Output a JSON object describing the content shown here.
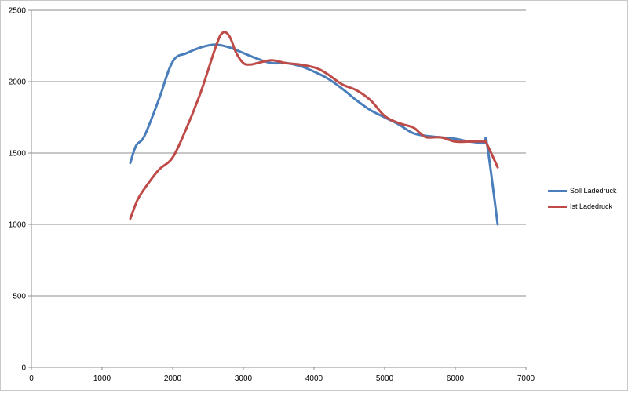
{
  "chart_data": {
    "type": "line",
    "title": "",
    "xlabel": "",
    "ylabel": "",
    "xlim": [
      0,
      7000
    ],
    "ylim": [
      0,
      2500
    ],
    "x_ticks": [
      0,
      1000,
      2000,
      3000,
      4000,
      5000,
      6000,
      7000
    ],
    "y_ticks": [
      0,
      500,
      1000,
      1500,
      2000,
      2500
    ],
    "x_tick_labels": [
      "0",
      "1000",
      "2000",
      "3000",
      "4000",
      "5000",
      "6000",
      "7000"
    ],
    "y_tick_labels": [
      "0",
      "500",
      "1000",
      "1500",
      "2000",
      "2500"
    ],
    "grid": "horizontal",
    "legend_position": "right",
    "series": [
      {
        "name": "Soll Ladedruck",
        "color": "#4a7ebb",
        "x": [
          1400,
          1480,
          1600,
          1800,
          2000,
          2200,
          2400,
          2600,
          2800,
          3000,
          3200,
          3400,
          3600,
          3800,
          4000,
          4200,
          4400,
          4600,
          4800,
          5000,
          5200,
          5400,
          5600,
          5800,
          6000,
          6200,
          6400,
          6450,
          6600
        ],
        "y": [
          1430,
          1550,
          1620,
          1870,
          2140,
          2200,
          2240,
          2260,
          2240,
          2200,
          2160,
          2130,
          2130,
          2110,
          2070,
          2020,
          1950,
          1870,
          1800,
          1750,
          1700,
          1640,
          1620,
          1610,
          1600,
          1580,
          1570,
          1560,
          1000
        ]
      },
      {
        "name": "Ist Ladedruck",
        "color": "#be4b48",
        "x": [
          1400,
          1500,
          1600,
          1800,
          2000,
          2200,
          2400,
          2600,
          2700,
          2800,
          2900,
          3000,
          3100,
          3200,
          3400,
          3600,
          3800,
          4000,
          4100,
          4200,
          4400,
          4600,
          4800,
          5000,
          5200,
          5400,
          5500,
          5600,
          5800,
          6000,
          6200,
          6400,
          6450,
          6600
        ],
        "y": [
          1040,
          1170,
          1250,
          1380,
          1470,
          1680,
          1930,
          2230,
          2340,
          2320,
          2200,
          2130,
          2120,
          2130,
          2150,
          2130,
          2120,
          2100,
          2080,
          2050,
          1980,
          1940,
          1870,
          1760,
          1710,
          1680,
          1640,
          1610,
          1610,
          1580,
          1580,
          1580,
          1560,
          1400
        ]
      }
    ]
  }
}
